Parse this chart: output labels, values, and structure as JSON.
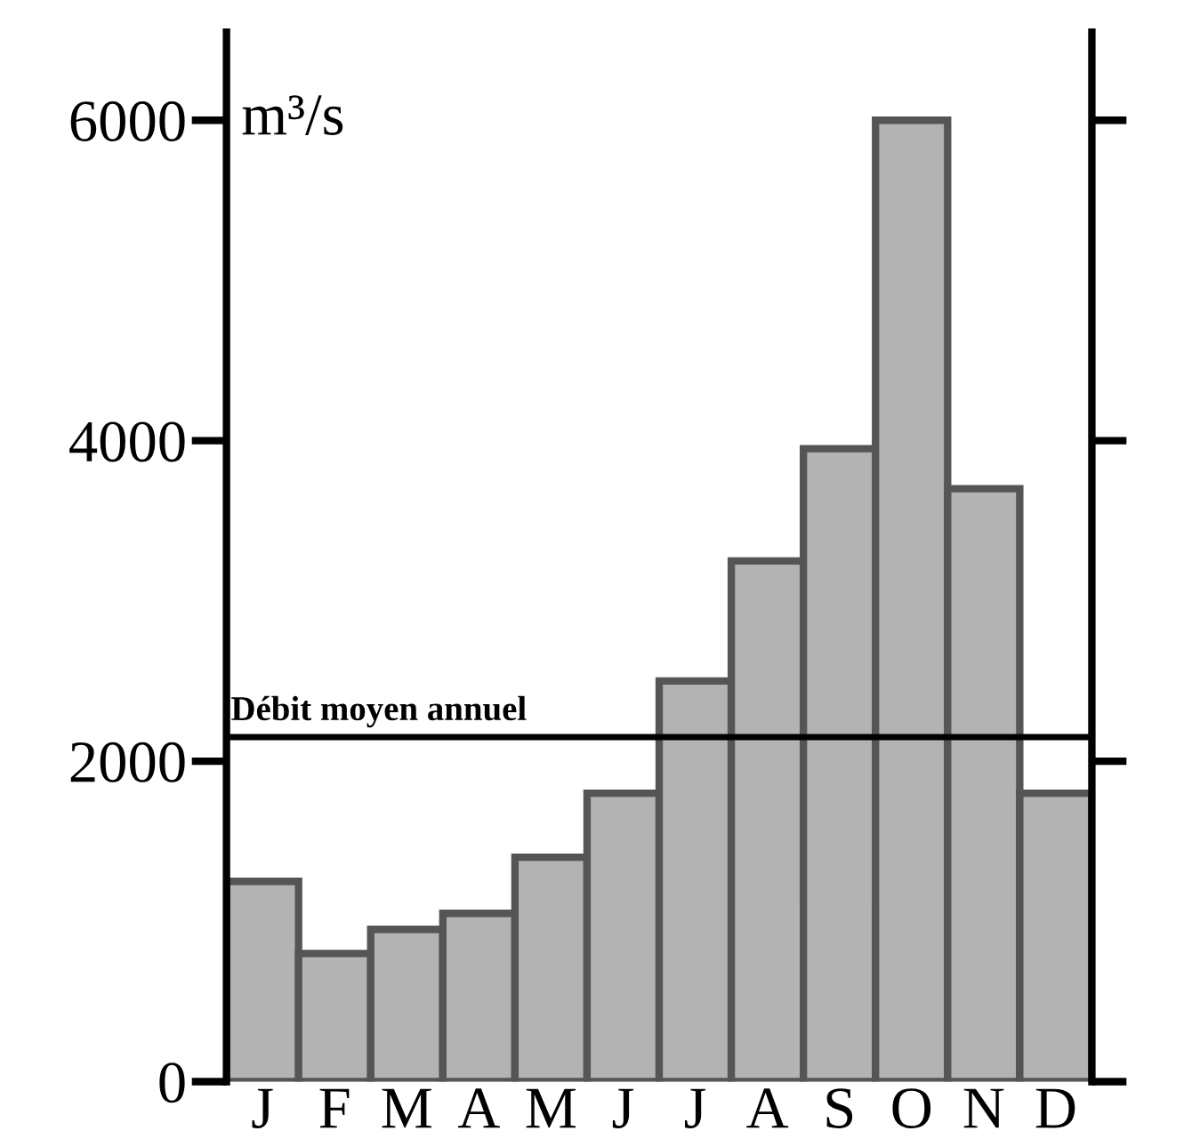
{
  "chart_data": {
    "type": "bar",
    "ylabel": "m³/s",
    "categories": [
      "J",
      "F",
      "M",
      "A",
      "M",
      "J",
      "J",
      "A",
      "S",
      "O",
      "N",
      "D"
    ],
    "values": [
      1250,
      800,
      950,
      1050,
      1400,
      1800,
      2500,
      3250,
      3950,
      6000,
      3700,
      1800
    ],
    "color": "#b3b3b3",
    "ylim": [
      0,
      6550
    ],
    "yticks": [
      0,
      2000,
      4000,
      6000
    ],
    "ref_lines": [
      {
        "axis": "y",
        "value": 2150,
        "label": "Débit moyen annuel",
        "color": "#000000"
      }
    ],
    "grid": false,
    "legend": false
  }
}
